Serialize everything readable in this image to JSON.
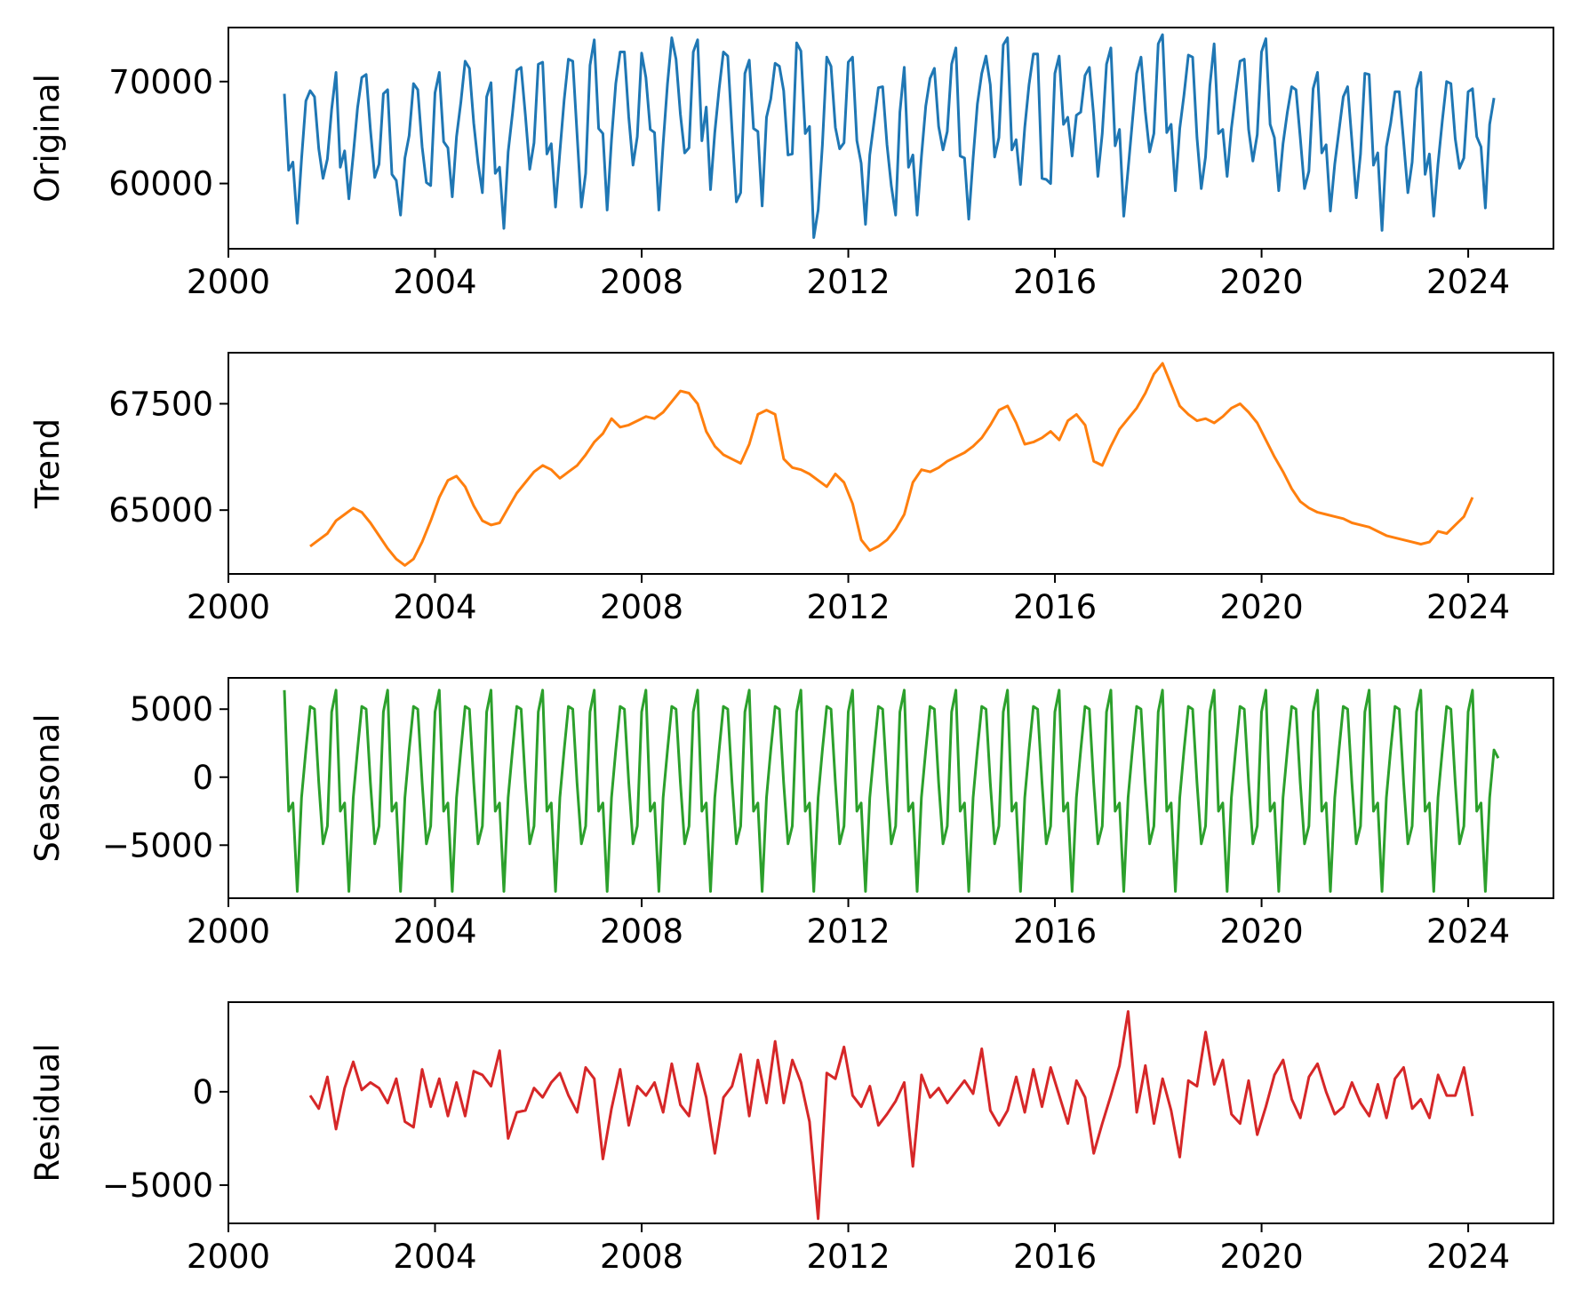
{
  "figure": {
    "background": "#ffffff",
    "axis_color": "#000000"
  },
  "chart_data": [
    {
      "type": "line",
      "title": "",
      "xlabel": "",
      "ylabel": "Original",
      "color": "#1f77b4",
      "xlim": [
        2000.0,
        2025.65
      ],
      "ylim": [
        53600,
        75300
      ],
      "xticks": [
        2000,
        2004,
        2008,
        2012,
        2016,
        2020,
        2024
      ],
      "yticks": [
        60000,
        70000
      ],
      "grid": false,
      "series": [
        {
          "start": 2001.083,
          "step": 0.08333,
          "values": [
            68800,
            61300,
            62100,
            56100,
            62400,
            68100,
            69100,
            68500,
            63400,
            60500,
            62400,
            67300,
            70900,
            61600,
            63200,
            58500,
            62800,
            67400,
            70400,
            70700,
            65300,
            60600,
            61900,
            68800,
            69200,
            60900,
            60300,
            56900,
            62500,
            64700,
            69800,
            69200,
            63600,
            60100,
            59800,
            68900,
            70900,
            64100,
            63500,
            58700,
            64600,
            68000,
            72000,
            71300,
            65900,
            62000,
            59100,
            68500,
            69900,
            61000,
            61600,
            55600,
            63100,
            66900,
            71100,
            71400,
            66700,
            61400,
            64000,
            71700,
            71900,
            62900,
            63900,
            57700,
            63100,
            68200,
            72200,
            72000,
            64900,
            57700,
            61000,
            71600,
            74100,
            65400,
            64900,
            57400,
            64300,
            69800,
            72900,
            72900,
            66500,
            61800,
            64600,
            72800,
            70400,
            65300,
            65000,
            57400,
            63900,
            69800,
            74300,
            72200,
            66800,
            63000,
            63500,
            72900,
            74100,
            64200,
            67500,
            59400,
            65000,
            69300,
            72900,
            72500,
            65200,
            58200,
            59100,
            70800,
            72100,
            65400,
            65100,
            57800,
            66500,
            68300,
            71800,
            71500,
            69100,
            62800,
            62900,
            73800,
            73000,
            64900,
            65600,
            54700,
            57400,
            63800,
            72400,
            71500,
            65500,
            63400,
            64000,
            71900,
            72400,
            64200,
            62000,
            56000,
            62800,
            66100,
            69400,
            69500,
            63800,
            59800,
            56900,
            67000,
            71400,
            61600,
            62800,
            56900,
            62600,
            67600,
            70300,
            71300,
            65600,
            63300,
            65100,
            71700,
            73300,
            62700,
            62500,
            56500,
            62500,
            67800,
            70800,
            72500,
            69700,
            62600,
            64500,
            73600,
            74300,
            63300,
            64300,
            59900,
            65500,
            69700,
            72700,
            72700,
            60500,
            60400,
            60000,
            70800,
            72500,
            65800,
            66500,
            62700,
            66700,
            67000,
            70600,
            71400,
            66700,
            60700,
            64900,
            71700,
            73300,
            63700,
            65300,
            56800,
            61400,
            66100,
            70800,
            72400,
            67100,
            63100,
            64900,
            73700,
            74600,
            65000,
            65800,
            59300,
            65400,
            68700,
            72600,
            72400,
            64500,
            59500,
            62600,
            69600,
            73700,
            64900,
            65300,
            60700,
            65400,
            68800,
            72000,
            72200,
            65300,
            62200,
            64800,
            72900,
            74200,
            65800,
            64500,
            59300,
            63900,
            67000,
            69500,
            69200,
            64500,
            59500,
            61200,
            69300,
            70900,
            63000,
            63800,
            57300,
            61900,
            65200,
            68500,
            69500,
            64200,
            58600,
            62900,
            70800,
            70700,
            61800,
            63000,
            55400,
            63600,
            65900,
            69000,
            69000,
            64100,
            59100,
            62100,
            69300,
            70900,
            60900,
            62900,
            56800,
            61900,
            66200,
            70000,
            69800,
            64400,
            61500,
            62500,
            69000,
            69300,
            64600,
            63600,
            57600,
            65800,
            68400
          ]
        }
      ]
    },
    {
      "type": "line",
      "title": "",
      "xlabel": "",
      "ylabel": "Trend",
      "color": "#ff7f0e",
      "xlim": [
        2000.0,
        2025.65
      ],
      "ylim": [
        63500,
        68700
      ],
      "xticks": [
        2000,
        2004,
        2008,
        2012,
        2016,
        2020,
        2024
      ],
      "yticks": [
        65000,
        67500
      ],
      "grid": false,
      "series": [
        {
          "start": 2001.583,
          "step": 0.16667,
          "values": [
            64150,
            64300,
            64450,
            64750,
            64900,
            65050,
            64950,
            64700,
            64400,
            64100,
            63850,
            63700,
            63850,
            64250,
            64750,
            65300,
            65700,
            65800,
            65550,
            65100,
            64750,
            64650,
            64700,
            65050,
            65400,
            65650,
            65900,
            66050,
            65950,
            65750,
            65900,
            66050,
            66300,
            66600,
            66800,
            67150,
            66950,
            67000,
            67100,
            67200,
            67150,
            67300,
            67550,
            67800,
            67750,
            67500,
            66850,
            66500,
            66300,
            66200,
            66100,
            66550,
            67250,
            67350,
            67250,
            66200,
            66000,
            65950,
            65850,
            65700,
            65550,
            65850,
            65650,
            65150,
            64300,
            64050,
            64150,
            64300,
            64550,
            64900,
            65650,
            65950,
            65900,
            66000,
            66150,
            66250,
            66350,
            66500,
            66700,
            67000,
            67350,
            67450,
            67050,
            66550,
            66600,
            66700,
            66850,
            66650,
            67100,
            67250,
            67000,
            66150,
            66050,
            66500,
            66900,
            67150,
            67400,
            67750,
            68200,
            68450,
            67950,
            67450,
            67250,
            67100,
            67150,
            67050,
            67200,
            67400,
            67500,
            67300,
            67050,
            66650,
            66250,
            65900,
            65500,
            65200,
            65050,
            64950,
            64900,
            64850,
            64800,
            64700,
            64650,
            64600,
            64500,
            64400,
            64350,
            64300,
            64250,
            64200,
            64250,
            64500,
            64450,
            64650,
            64850,
            65300
          ]
        }
      ]
    },
    {
      "type": "line",
      "title": "",
      "xlabel": "",
      "ylabel": "Seasonal",
      "color": "#2ca02c",
      "xlim": [
        2000.0,
        2025.65
      ],
      "ylim": [
        -8900,
        7300
      ],
      "xticks": [
        2000,
        2004,
        2008,
        2012,
        2016,
        2020,
        2024
      ],
      "yticks": [
        -5000,
        0,
        5000
      ],
      "grid": false,
      "series": [
        {
          "start": 2001.083,
          "step": 0.08333,
          "pattern": [
            6400,
            -2500,
            -1900,
            -8400,
            -1500,
            2000,
            5200,
            5000,
            -400,
            -4900,
            -3600,
            4800
          ],
          "last_value": 1400
        }
      ]
    },
    {
      "type": "line",
      "title": "",
      "xlabel": "",
      "ylabel": "Residual",
      "color": "#d62728",
      "xlim": [
        2000.0,
        2025.65
      ],
      "ylim": [
        -7050,
        4800
      ],
      "xticks": [
        2000,
        2004,
        2008,
        2012,
        2016,
        2020,
        2024
      ],
      "yticks": [
        -5000,
        0
      ],
      "grid": false,
      "series": [
        {
          "start": 2001.583,
          "step": 0.16667,
          "values": [
            -200,
            -900,
            800,
            -2000,
            200,
            1600,
            100,
            500,
            200,
            -600,
            700,
            -1600,
            -1900,
            1200,
            -800,
            700,
            -1300,
            500,
            -1300,
            1100,
            900,
            300,
            2200,
            -2500,
            -1100,
            -1000,
            200,
            -300,
            500,
            1000,
            -200,
            -1100,
            1300,
            700,
            -3600,
            -900,
            1200,
            -1800,
            300,
            -200,
            500,
            -1100,
            1500,
            -700,
            -1300,
            1500,
            -300,
            -3300,
            -300,
            300,
            2000,
            -1300,
            1700,
            -600,
            2700,
            -600,
            1700,
            500,
            -1600,
            -6800,
            1000,
            700,
            2400,
            -200,
            -800,
            300,
            -1800,
            -1200,
            -500,
            500,
            -4000,
            900,
            -300,
            200,
            -600,
            0,
            600,
            -100,
            2300,
            -1000,
            -1800,
            -1000,
            800,
            -1100,
            1200,
            -800,
            1300,
            -200,
            -1700,
            600,
            -300,
            -3300,
            -1700,
            -200,
            1400,
            4300,
            -1100,
            1400,
            -1700,
            700,
            -1000,
            -3500,
            600,
            300,
            3200,
            400,
            1700,
            -1200,
            -1700,
            600,
            -2300,
            -800,
            900,
            1700,
            -400,
            -1400,
            800,
            1500,
            0,
            -1200,
            -800,
            500,
            -600,
            -1300,
            400,
            -1400,
            700,
            1300,
            -900,
            -400,
            -1400,
            900,
            -200,
            -200,
            1300,
            -1300
          ]
        }
      ]
    }
  ]
}
